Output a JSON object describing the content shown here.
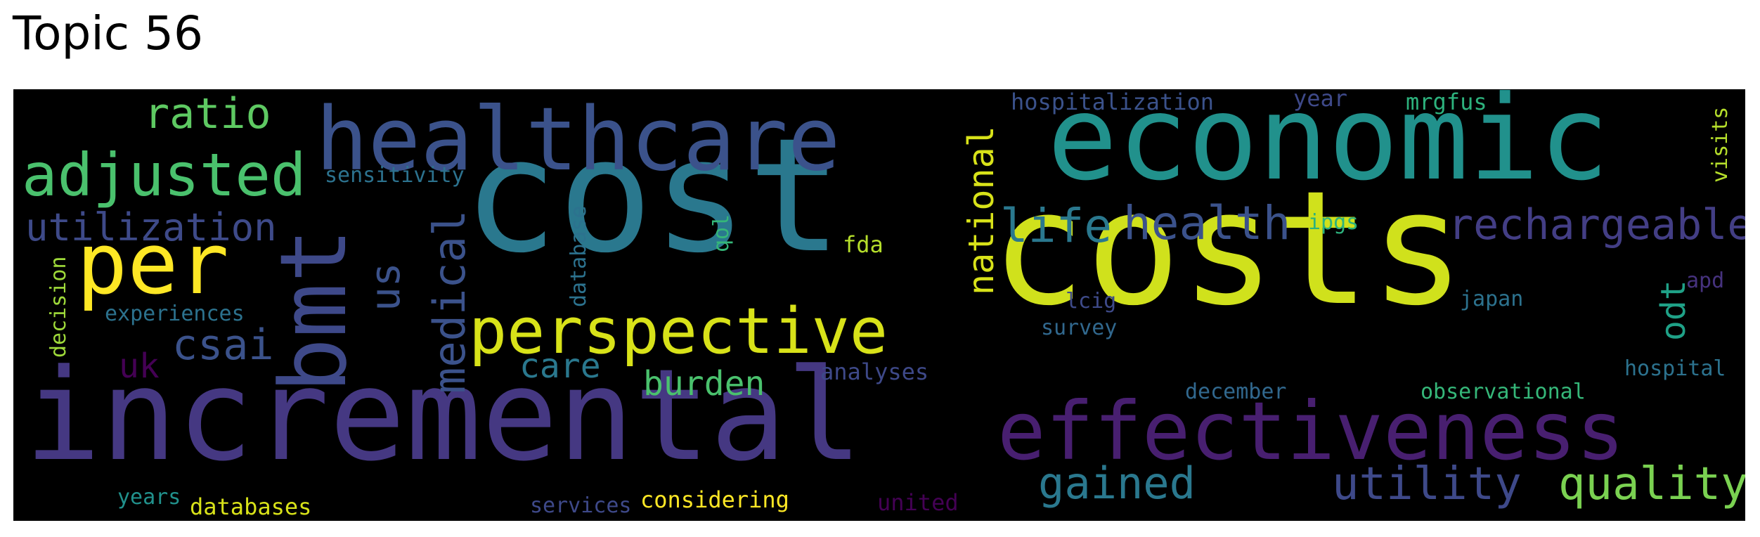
{
  "title": "Topic 56",
  "words": [
    {
      "text": "costs",
      "color": "#d0e11c"
    },
    {
      "text": "cost",
      "color": "#2a788e"
    },
    {
      "text": "incremental",
      "color": "#453882"
    },
    {
      "text": "economic",
      "color": "#21918c"
    },
    {
      "text": "effectiveness",
      "color": "#481f70"
    },
    {
      "text": "healthcare",
      "color": "#3b528b"
    },
    {
      "text": "per",
      "color": "#fde725"
    },
    {
      "text": "bmt",
      "color": "#3e4989"
    },
    {
      "text": "perspective",
      "color": "#d8e219"
    },
    {
      "text": "adjusted",
      "color": "#4ac16d"
    },
    {
      "text": "ratio",
      "color": "#5ec962"
    },
    {
      "text": "health",
      "color": "#3b528b"
    },
    {
      "text": "life",
      "color": "#2a788e"
    },
    {
      "text": "rechargeable",
      "color": "#433e85"
    },
    {
      "text": "utilization",
      "color": "#3e4a89"
    },
    {
      "text": "medical",
      "color": "#3b528b"
    },
    {
      "text": "national",
      "color": "#d8e219"
    },
    {
      "text": "us",
      "color": "#3b528b"
    },
    {
      "text": "csai",
      "color": "#3b528b"
    },
    {
      "text": "quality",
      "color": "#7ad151"
    },
    {
      "text": "utility",
      "color": "#3e4989"
    },
    {
      "text": "gained",
      "color": "#2a788e"
    },
    {
      "text": "burden",
      "color": "#4ac16d"
    },
    {
      "text": "care",
      "color": "#2a788e"
    },
    {
      "text": "uk",
      "color": "#440154"
    },
    {
      "text": "odt",
      "color": "#1fa187"
    },
    {
      "text": "sensitivity",
      "color": "#2c728e"
    },
    {
      "text": "hospitalization",
      "color": "#3b528b"
    },
    {
      "text": "year",
      "color": "#3e4989"
    },
    {
      "text": "mrgfus",
      "color": "#2db27d"
    },
    {
      "text": "visits",
      "color": "#b5de2b"
    },
    {
      "text": "decision",
      "color": "#9fda3a"
    },
    {
      "text": "experiences",
      "color": "#2c728e"
    },
    {
      "text": "database",
      "color": "#2c728e"
    },
    {
      "text": "qol",
      "color": "#35b779"
    },
    {
      "text": "fda",
      "color": "#b5de2b"
    },
    {
      "text": "ipgs",
      "color": "#2db27d"
    },
    {
      "text": "japan",
      "color": "#2c728e"
    },
    {
      "text": "apd",
      "color": "#46327e"
    },
    {
      "text": "lcig",
      "color": "#3e4a89"
    },
    {
      "text": "survey",
      "color": "#31688e"
    },
    {
      "text": "analyses",
      "color": "#3e4989"
    },
    {
      "text": "hospital",
      "color": "#2c728e"
    },
    {
      "text": "december",
      "color": "#31688e"
    },
    {
      "text": "observational",
      "color": "#35b779"
    },
    {
      "text": "years",
      "color": "#21918c"
    },
    {
      "text": "databases",
      "color": "#d8e219"
    },
    {
      "text": "services",
      "color": "#3e4989"
    },
    {
      "text": "considering",
      "color": "#fde725"
    },
    {
      "text": "united",
      "color": "#440154"
    }
  ]
}
